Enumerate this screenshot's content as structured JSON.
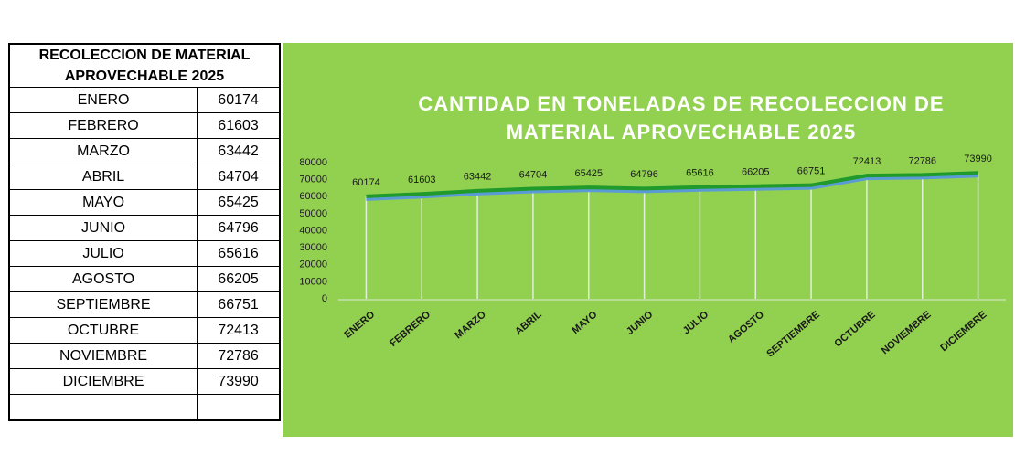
{
  "table": {
    "header": "RECOLECCION DE MATERIAL APROVECHABLE 2025",
    "rows": [
      [
        "ENERO",
        60174
      ],
      [
        "FEBRERO",
        61603
      ],
      [
        "MARZO",
        63442
      ],
      [
        "ABRIL",
        64704
      ],
      [
        "MAYO",
        65425
      ],
      [
        "JUNIO",
        64796
      ],
      [
        "JULIO",
        65616
      ],
      [
        "AGOSTO",
        66205
      ],
      [
        "SEPTIEMBRE",
        66751
      ],
      [
        "OCTUBRE",
        72413
      ],
      [
        "NOVIEMBRE",
        72786
      ],
      [
        "DICIEMBRE",
        73990
      ]
    ]
  },
  "chart_data": {
    "type": "line",
    "title": "CANTIDAD EN TONELADAS DE RECOLECCION DE MATERIAL APROVECHABLE 2025",
    "categories": [
      "ENERO",
      "FEBRERO",
      "MARZO",
      "ABRIL",
      "MAYO",
      "JUNIO",
      "JULIO",
      "AGOSTO",
      "SEPTIEMBRE",
      "OCTUBRE",
      "NOVIEMBRE",
      "DICIEMBRE"
    ],
    "values": [
      60174,
      61603,
      63442,
      64704,
      65425,
      64796,
      65616,
      66205,
      66751,
      72413,
      72786,
      73990
    ],
    "color": "#1f9a2b",
    "ylim": [
      0,
      80000
    ],
    "yticks": [
      0,
      10000,
      20000,
      30000,
      40000,
      50000,
      60000,
      70000,
      80000
    ]
  }
}
